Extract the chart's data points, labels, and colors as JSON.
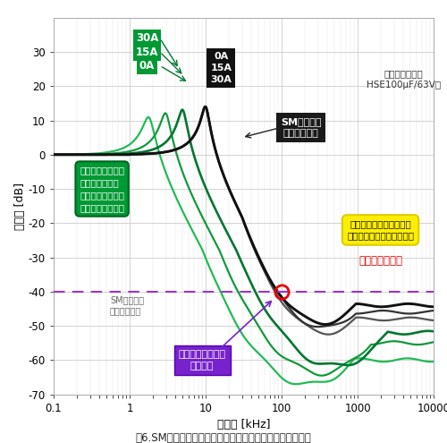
{
  "title": "図6.SMコイル、トロイダルコイルによるフィルタ特性比較",
  "xlabel": "周波数 [kHz]",
  "ylabel": "減衰量 [dB]",
  "xlim_log": [
    -1,
    4
  ],
  "ylim": [
    -70,
    40
  ],
  "yticks": [
    -70,
    -60,
    -50,
    -40,
    -30,
    -20,
    -10,
    0,
    10,
    20,
    30
  ],
  "xticks": [
    0.1,
    1,
    10,
    100,
    1000,
    10000
  ],
  "xticklabels": [
    "0.1",
    "1",
    "10",
    "100",
    "1000",
    "10000"
  ],
  "bg_color": "#ffffff",
  "grid_color": "#cccccc",
  "dashed_line_y": -40,
  "dashed_line_color": "#9933cc",
  "green_dark": "#007733",
  "green_mid": "#00aa44",
  "green_light": "#33cc66",
  "black_color": "#111111",
  "gray1": "#333333",
  "gray2": "#555555"
}
